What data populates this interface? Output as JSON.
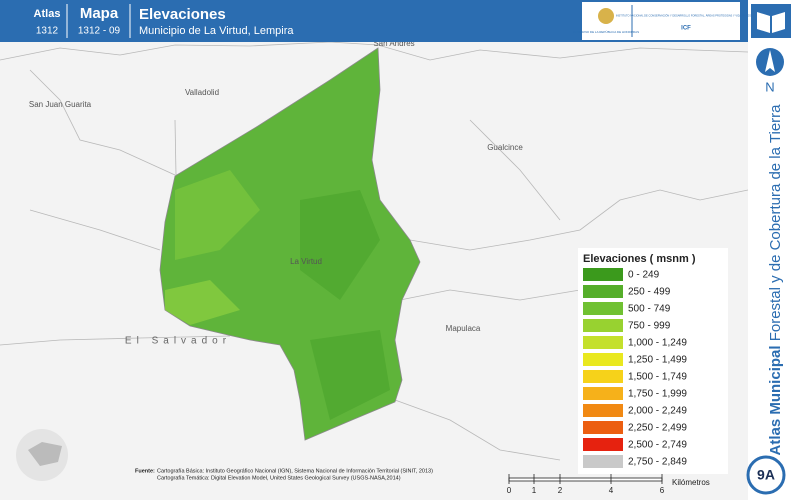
{
  "header": {
    "atlas_label": "Atlas",
    "atlas_number": "1312",
    "map_label": "Mapa",
    "map_number": "1312 - 09",
    "title": "Elevaciones",
    "subtitle": "Municipio de La Virtud, Lempira",
    "logo_left": "GOBIERNO DE LA REPÚBLICA DE HONDURAS",
    "logo_right": "INSTITUTO NACIONAL DE CONSERVACIÓN Y DESARROLLO FORESTAL, ÁREAS PROTEGIDAS Y VIDA SILVESTRE",
    "logo_right_code": "ICF"
  },
  "places": [
    "San Andrés",
    "San Juan Guarita",
    "Valladolid",
    "Gualcince",
    "La Virtud",
    "El Salvador",
    "Mapulaca"
  ],
  "legend": {
    "title": "Elevaciones ( msnm )",
    "items": [
      {
        "label": "0 - 249",
        "color": "#3b9a1c"
      },
      {
        "label": "250 - 499",
        "color": "#55ae2a"
      },
      {
        "label": "500 - 749",
        "color": "#70c132"
      },
      {
        "label": "750 - 999",
        "color": "#98d230"
      },
      {
        "label": "1,000 - 1,249",
        "color": "#c4e02c"
      },
      {
        "label": "1,250 - 1,499",
        "color": "#e9e81f"
      },
      {
        "label": "1,500 - 1,749",
        "color": "#f6d21a"
      },
      {
        "label": "1,750 - 1,999",
        "color": "#f6b11a"
      },
      {
        "label": "2,000 - 2,249",
        "color": "#f18913"
      },
      {
        "label": "2,250 - 2,499",
        "color": "#ec5e11"
      },
      {
        "label": "2,500 - 2,749",
        "color": "#e6220f"
      },
      {
        "label": "2,750 - 2,849",
        "color": "#c9c9c9"
      }
    ]
  },
  "source": {
    "heading": "Fuente:",
    "line1": "Cartografía Básica: Instituto Geográfico Nacional (IGN), Sistema Nacional de Información Territorial (SINIT, 2013)",
    "line2": "Cartografía Temática: Digital Elevation Model, United States Geological Survey (USGS-NASA,2014)"
  },
  "scale": {
    "ticks": [
      "0",
      "1",
      "2",
      "4",
      "6"
    ],
    "unit": "Kilómetros"
  },
  "sidebar": {
    "north": "N",
    "title_bold": "Atlas Municipal",
    "title_rest": " Forestal y de Cobertura de la Tierra",
    "badge": "9A"
  }
}
